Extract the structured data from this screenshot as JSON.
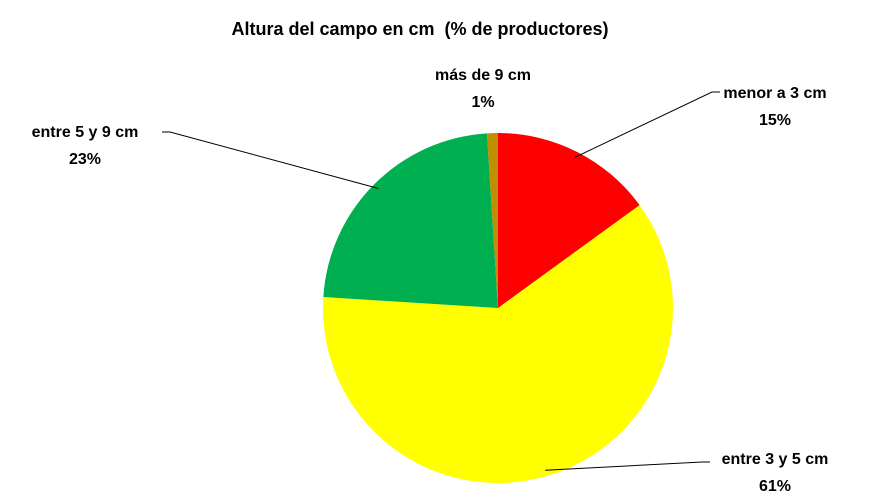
{
  "chart_data": {
    "type": "pie",
    "title": "Altura del campo en cm  (% de productores)",
    "categories": [
      "menor a 3 cm",
      "entre 3 y 5 cm",
      "entre 5 y 9 cm",
      "más de 9 cm"
    ],
    "values": [
      15,
      61,
      23,
      1
    ],
    "value_labels": [
      "15%",
      "61%",
      "23%",
      "1%"
    ],
    "colors": [
      "#ff0000",
      "#ffff00",
      "#00b050",
      "#bf8f00"
    ]
  }
}
